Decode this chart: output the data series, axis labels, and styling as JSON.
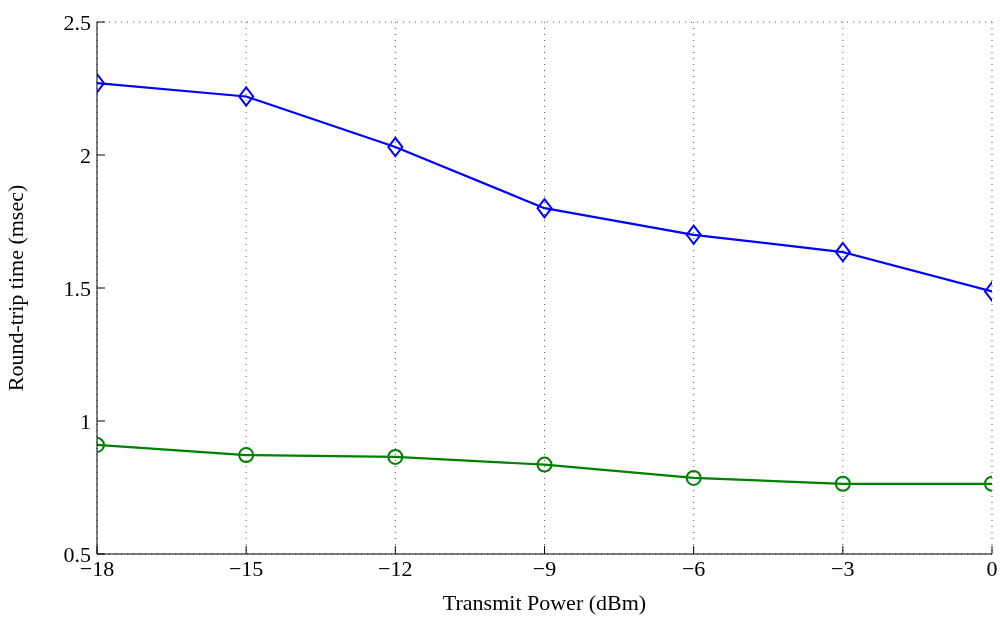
{
  "chart_data": {
    "type": "line",
    "xlabel": "Transmit Power (dBm)",
    "ylabel": "Round-trip time (msec)",
    "x": [
      -18,
      -15,
      -12,
      -9,
      -6,
      -3,
      0
    ],
    "series": [
      {
        "color": "#0000ff",
        "marker": "diamond",
        "values": [
          2.27,
          2.22,
          2.03,
          1.8,
          1.7,
          1.635,
          1.487
        ]
      },
      {
        "color": "#008000",
        "marker": "circle",
        "values": [
          0.91,
          0.872,
          0.865,
          0.836,
          0.786,
          0.764,
          0.764
        ]
      }
    ],
    "xlim": [
      -18,
      0
    ],
    "xticks": [
      {
        "value": -18,
        "label": "−18"
      },
      {
        "value": -15,
        "label": "−15"
      },
      {
        "value": -12,
        "label": "−12"
      },
      {
        "value": -9,
        "label": "−9"
      },
      {
        "value": -6,
        "label": "−6"
      },
      {
        "value": -3,
        "label": "−3"
      },
      0
    ],
    "ylim": [
      0.5,
      2.5
    ],
    "yticks": [
      0.5,
      1,
      1.5,
      2,
      2.5
    ],
    "grid": true,
    "line_style": "solid"
  }
}
